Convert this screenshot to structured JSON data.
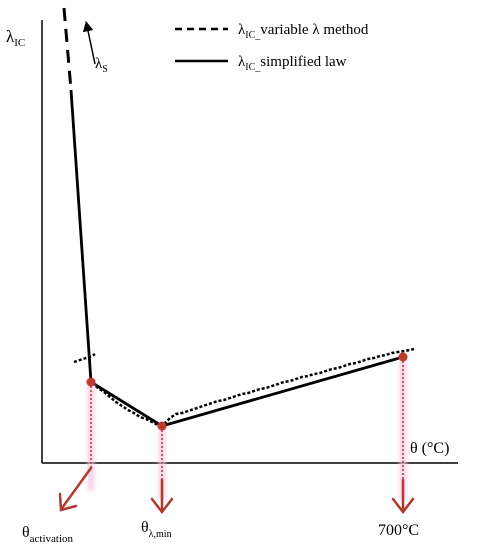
{
  "axes": {
    "y_symbol": "λ",
    "y_subscript": "IC",
    "x_label": "θ (°C)"
  },
  "legend": {
    "dashed": {
      "symbol": "λ",
      "subscript": "IC_",
      "text": "variable λ method"
    },
    "solid": {
      "symbol": "λ",
      "subscript": "IC_",
      "text": "simplified  law"
    }
  },
  "annotation": {
    "symbol": "λ",
    "subscript": "S"
  },
  "markers": [
    {
      "symbol": "θ",
      "subscript": "activation"
    },
    {
      "symbol": "θ",
      "subscript": "λ,min"
    },
    {
      "text": "700°C"
    }
  ],
  "colors": {
    "line": "#000000",
    "point": "#c0392b",
    "arrow": "#b03a2e",
    "glow": "#f7c6e0"
  }
}
